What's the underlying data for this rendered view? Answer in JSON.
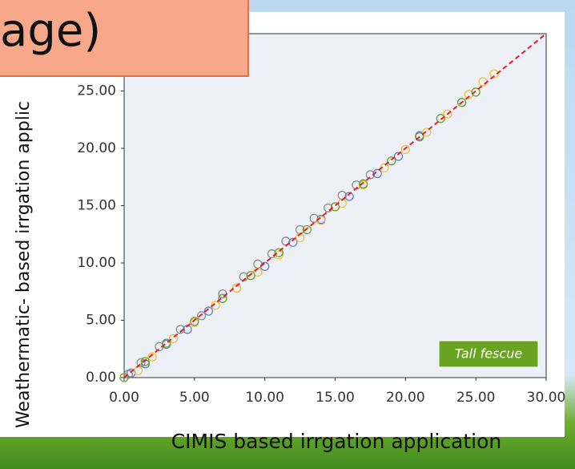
{
  "chart_data": {
    "type": "scatter",
    "title": "age)",
    "xlabel": "CIMIS based irrgation application",
    "ylabel": "Weathermatic- based irrgation applic",
    "annotation": "Tall fescue",
    "xlim": [
      0,
      30
    ],
    "ylim": [
      0,
      30
    ],
    "xticks": [
      {
        "value": 0,
        "label": "0.00"
      },
      {
        "value": 5,
        "label": "5.00"
      },
      {
        "value": 10,
        "label": "10.00"
      },
      {
        "value": 15,
        "label": "15.00"
      },
      {
        "value": 20,
        "label": "20.00"
      },
      {
        "value": 25,
        "label": "25.00"
      },
      {
        "value": 30,
        "label": "30.00"
      }
    ],
    "yticks": [
      {
        "value": 0,
        "label": "0.00"
      },
      {
        "value": 5,
        "label": "5.00"
      },
      {
        "value": 10,
        "label": "10.00"
      },
      {
        "value": 15,
        "label": "15.00"
      },
      {
        "value": 20,
        "label": "20.00"
      },
      {
        "value": 25,
        "label": "25.00"
      }
    ],
    "reference_line": {
      "x": [
        0,
        30
      ],
      "y": [
        0,
        30
      ],
      "color": "#e02020"
    },
    "series": [
      {
        "color": "#8c8c8c",
        "x": [
          0.3,
          1.2,
          2.5,
          4,
          5.5,
          7,
          8.5,
          9.5,
          10.5,
          11.5,
          12.5,
          13.5,
          14.5,
          15.5,
          16.5,
          17.5
        ],
        "values": [
          0.3,
          1.3,
          2.7,
          4.2,
          5.4,
          7.3,
          8.8,
          9.9,
          10.8,
          11.9,
          12.9,
          13.9,
          14.8,
          15.9,
          16.8,
          17.7
        ]
      },
      {
        "color": "#5b7fd1",
        "x": [
          0.5,
          1.5,
          3,
          4.5,
          6,
          8,
          10,
          12,
          14,
          16,
          18,
          19.5,
          21
        ],
        "values": [
          0.4,
          1.2,
          2.9,
          4.2,
          5.8,
          7.8,
          9.7,
          11.8,
          13.8,
          15.8,
          17.8,
          19.3,
          21.1
        ]
      },
      {
        "color": "#f2c12e",
        "x": [
          1,
          2,
          3.5,
          5,
          6.5,
          8,
          9.5,
          11,
          12.5,
          14,
          15.5,
          17,
          18.5,
          20,
          21.5,
          23,
          24.5,
          25.5,
          26.3
        ],
        "values": [
          0.6,
          1.8,
          3.4,
          4.8,
          6.3,
          7.8,
          9.2,
          10.7,
          12.2,
          13.7,
          15.2,
          16.8,
          18.3,
          19.9,
          21.4,
          23,
          24.7,
          25.8,
          26.5
        ]
      },
      {
        "color": "#6aa321",
        "x": [
          0,
          1.5,
          3,
          5,
          7,
          9,
          11,
          13,
          15,
          17,
          19,
          21,
          22.5,
          24,
          25
        ],
        "values": [
          0,
          1.4,
          3,
          4.9,
          6.9,
          8.9,
          10.9,
          12.9,
          14.9,
          16.9,
          18.9,
          21,
          22.6,
          24,
          24.9
        ]
      }
    ]
  }
}
